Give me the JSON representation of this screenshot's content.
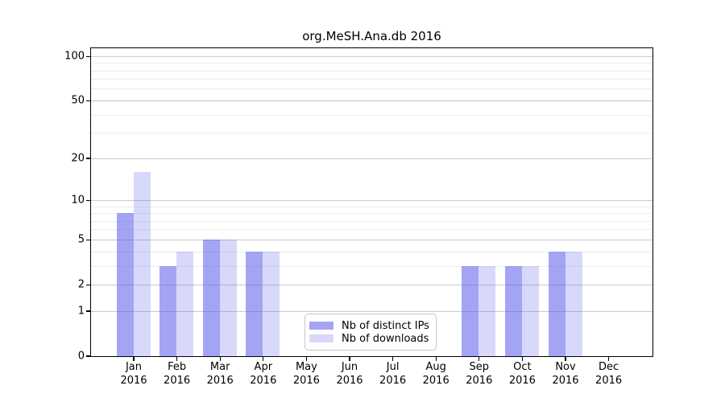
{
  "chart_data": {
    "type": "bar",
    "title": "org.MeSH.Ana.db 2016",
    "x_axis": {
      "months": [
        "Jan",
        "Feb",
        "Mar",
        "Apr",
        "May",
        "Jun",
        "Jul",
        "Aug",
        "Sep",
        "Oct",
        "Nov",
        "Dec"
      ],
      "year": "2016"
    },
    "y_axis": {
      "scale": "log1p",
      "ticks": [
        0,
        1,
        2,
        5,
        10,
        20,
        50,
        100
      ],
      "minor_gridlines": [
        3,
        4,
        6,
        7,
        8,
        9,
        30,
        40,
        60,
        70,
        80,
        90
      ],
      "ylim": [
        0,
        114
      ]
    },
    "series": [
      {
        "name": "Nb of distinct IPs",
        "color": "#5a5aeb",
        "alpha": 0.55,
        "swatch_hex": "#a6a6f4",
        "values": [
          8,
          3,
          5,
          4,
          0,
          0,
          0,
          0,
          3,
          3,
          4,
          0
        ]
      },
      {
        "name": "Nb of downloads",
        "color": "#5a5aeb",
        "alpha": 0.24,
        "swatch_hex": "#d7d7fa",
        "values": [
          16,
          4,
          5,
          4,
          0,
          0,
          0,
          0,
          3,
          3,
          4,
          0
        ]
      }
    ],
    "legend": {
      "position": "bottom-center"
    },
    "grid": true
  }
}
